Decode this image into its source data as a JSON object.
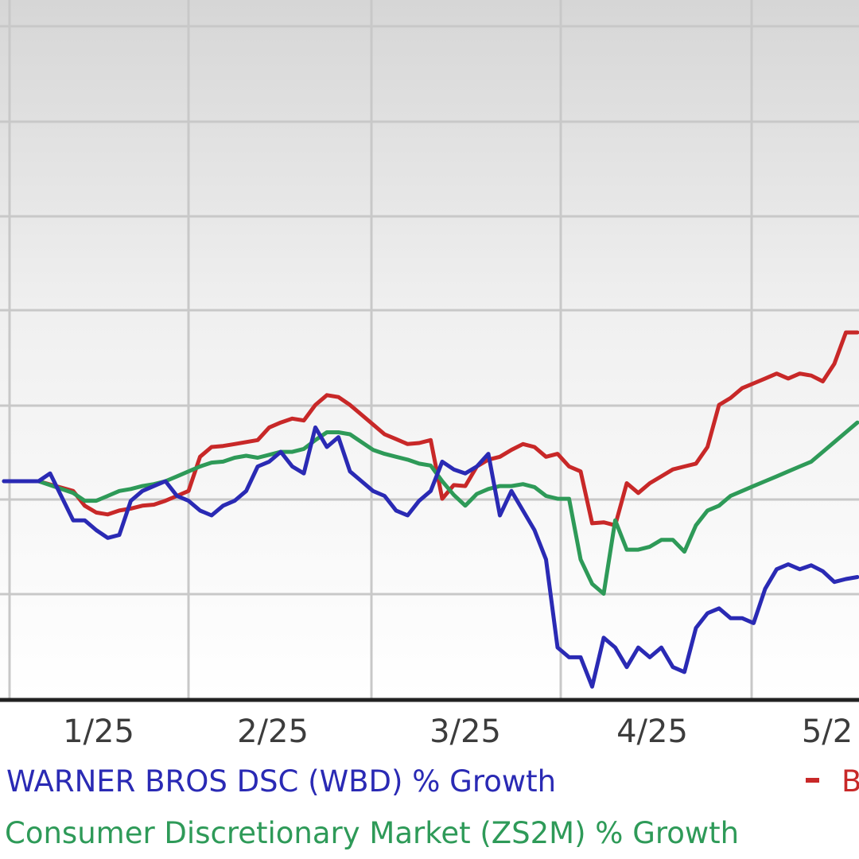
{
  "chart_data": {
    "type": "line",
    "title": "",
    "xlabel": "",
    "ylabel": "",
    "grid": true,
    "x_tick_labels": [
      "1/25",
      "2/25",
      "3/25",
      "4/25",
      "5/2"
    ],
    "legend": {
      "placement": "bottom",
      "entries": [
        {
          "series": "wbd",
          "text": "WARNER BROS DSC (WBD) % Growth",
          "marker": ""
        },
        {
          "series": "zs2m",
          "text": "Consumer Discretionary Market (ZS2M) % Growth",
          "marker": ""
        },
        {
          "series": "third",
          "text": "B",
          "marker": "-"
        }
      ]
    },
    "series": [
      {
        "key": "third",
        "color": "#c82828",
        "values": [
          [
            0,
            0
          ],
          [
            3,
            0
          ],
          [
            6,
            -1
          ],
          [
            7,
            -2.5
          ],
          [
            8,
            -3.2
          ],
          [
            9,
            -3.4
          ],
          [
            10,
            -3
          ],
          [
            11,
            -2.8
          ],
          [
            12,
            -2.5
          ],
          [
            13,
            -2.4
          ],
          [
            14,
            -2
          ],
          [
            15,
            -1.5
          ],
          [
            16,
            -1
          ],
          [
            17,
            2.5
          ],
          [
            18,
            3.5
          ],
          [
            19,
            3.6
          ],
          [
            20,
            3.8
          ],
          [
            21,
            4
          ],
          [
            22,
            4.2
          ],
          [
            23,
            5.5
          ],
          [
            24,
            6
          ],
          [
            25,
            6.4
          ],
          [
            26,
            6.2
          ],
          [
            27,
            7.8
          ],
          [
            28,
            8.8
          ],
          [
            29,
            8.6
          ],
          [
            30,
            7.8
          ],
          [
            31,
            6.8
          ],
          [
            32,
            5.8
          ],
          [
            33,
            4.8
          ],
          [
            34,
            4.3
          ],
          [
            35,
            3.8
          ],
          [
            36,
            3.9
          ],
          [
            37,
            4.2
          ],
          [
            38,
            -1.8
          ],
          [
            39,
            -0.4
          ],
          [
            40,
            -0.5
          ],
          [
            41,
            1.5
          ],
          [
            42,
            2.2
          ],
          [
            43,
            2.5
          ],
          [
            44,
            3.2
          ],
          [
            45,
            3.8
          ],
          [
            46,
            3.5
          ],
          [
            47,
            2.5
          ],
          [
            48,
            2.8
          ],
          [
            49,
            1.5
          ],
          [
            50,
            1.0
          ],
          [
            51,
            -4.3
          ],
          [
            52,
            -4.2
          ],
          [
            53,
            -4.5
          ],
          [
            54,
            -0.2
          ],
          [
            55,
            -1.2
          ],
          [
            56,
            -0.2
          ],
          [
            57,
            0.5
          ],
          [
            58,
            1.2
          ],
          [
            59,
            1.5
          ],
          [
            60,
            1.8
          ],
          [
            61,
            3.5
          ],
          [
            62,
            7.8
          ],
          [
            63,
            8.5
          ],
          [
            64,
            9.5
          ],
          [
            65,
            10
          ],
          [
            66,
            10.5
          ],
          [
            67,
            11
          ],
          [
            68,
            10.5
          ],
          [
            69,
            11
          ],
          [
            70,
            10.8
          ],
          [
            71,
            10.2
          ],
          [
            72,
            12
          ],
          [
            73,
            15.2
          ],
          [
            74,
            15.2
          ]
        ]
      },
      {
        "key": "zs2m",
        "color": "#2e9a58",
        "values": [
          [
            0,
            0
          ],
          [
            3,
            0
          ],
          [
            6,
            -1.2
          ],
          [
            7,
            -2
          ],
          [
            8,
            -2
          ],
          [
            9,
            -1.5
          ],
          [
            10,
            -1
          ],
          [
            11,
            -0.8
          ],
          [
            12,
            -0.5
          ],
          [
            13,
            -0.3
          ],
          [
            14,
            0
          ],
          [
            15,
            0.5
          ],
          [
            16,
            1
          ],
          [
            17,
            1.5
          ],
          [
            18,
            1.9
          ],
          [
            19,
            2
          ],
          [
            20,
            2.4
          ],
          [
            21,
            2.6
          ],
          [
            22,
            2.4
          ],
          [
            23,
            2.7
          ],
          [
            24,
            3
          ],
          [
            25,
            3
          ],
          [
            26,
            3.3
          ],
          [
            27,
            4.2
          ],
          [
            28,
            5
          ],
          [
            29,
            5
          ],
          [
            30,
            4.8
          ],
          [
            31,
            4
          ],
          [
            32,
            3.2
          ],
          [
            33,
            2.8
          ],
          [
            34,
            2.5
          ],
          [
            35,
            2.2
          ],
          [
            36,
            1.8
          ],
          [
            37,
            1.6
          ],
          [
            38,
            0
          ],
          [
            39,
            -1.4
          ],
          [
            40,
            -2.5
          ],
          [
            41,
            -1.3
          ],
          [
            42,
            -0.8
          ],
          [
            43,
            -0.5
          ],
          [
            44,
            -0.5
          ],
          [
            45,
            -0.3
          ],
          [
            46,
            -0.6
          ],
          [
            47,
            -1.5
          ],
          [
            48,
            -1.8
          ],
          [
            49,
            -1.8
          ],
          [
            50,
            -8
          ],
          [
            51,
            -10.5
          ],
          [
            52,
            -11.5
          ],
          [
            53,
            -4
          ],
          [
            54,
            -7
          ],
          [
            55,
            -7
          ],
          [
            56,
            -6.7
          ],
          [
            57,
            -6
          ],
          [
            58,
            -6
          ],
          [
            59,
            -7.2
          ],
          [
            60,
            -4.5
          ],
          [
            61,
            -3
          ],
          [
            62,
            -2.5
          ],
          [
            63,
            -1.5
          ],
          [
            64,
            -1
          ],
          [
            65,
            -0.5
          ],
          [
            66,
            0
          ],
          [
            67,
            0.5
          ],
          [
            68,
            1
          ],
          [
            69,
            1.5
          ],
          [
            70,
            2
          ],
          [
            71,
            3
          ],
          [
            72,
            4
          ],
          [
            73,
            5
          ],
          [
            74,
            6
          ]
        ]
      },
      {
        "key": "wbd",
        "color": "#2a2ab4",
        "values": [
          [
            0,
            0
          ],
          [
            3,
            0
          ],
          [
            4,
            0.8
          ],
          [
            6,
            -4
          ],
          [
            7,
            -4
          ],
          [
            8,
            -5
          ],
          [
            9,
            -5.8
          ],
          [
            10,
            -5.5
          ],
          [
            11,
            -2
          ],
          [
            12,
            -1
          ],
          [
            13,
            -0.5
          ],
          [
            14,
            0
          ],
          [
            15,
            -1.5
          ],
          [
            16,
            -2
          ],
          [
            17,
            -3
          ],
          [
            18,
            -3.5
          ],
          [
            19,
            -2.5
          ],
          [
            20,
            -2
          ],
          [
            21,
            -1
          ],
          [
            22,
            1.5
          ],
          [
            23,
            2
          ],
          [
            24,
            3
          ],
          [
            25,
            1.5
          ],
          [
            26,
            0.8
          ],
          [
            27,
            5.5
          ],
          [
            28,
            3.5
          ],
          [
            29,
            4.5
          ],
          [
            30,
            1
          ],
          [
            31,
            0
          ],
          [
            32,
            -1
          ],
          [
            33,
            -1.5
          ],
          [
            34,
            -3
          ],
          [
            35,
            -3.5
          ],
          [
            36,
            -2
          ],
          [
            37,
            -1
          ],
          [
            38,
            2
          ],
          [
            39,
            1.2
          ],
          [
            40,
            0.8
          ],
          [
            41,
            1.5
          ],
          [
            42,
            2.8
          ],
          [
            43,
            -3.5
          ],
          [
            44,
            -1
          ],
          [
            45,
            -3
          ],
          [
            46,
            -5
          ],
          [
            47,
            -8
          ],
          [
            48,
            -17
          ],
          [
            49,
            -18
          ],
          [
            50,
            -18
          ],
          [
            51,
            -21
          ],
          [
            52,
            -16
          ],
          [
            53,
            -17
          ],
          [
            54,
            -19
          ],
          [
            55,
            -17
          ],
          [
            56,
            -18
          ],
          [
            57,
            -17
          ],
          [
            58,
            -19
          ],
          [
            59,
            -19.5
          ],
          [
            60,
            -15
          ],
          [
            61,
            -13.5
          ],
          [
            62,
            -13
          ],
          [
            63,
            -14
          ],
          [
            64,
            -14
          ],
          [
            65,
            -14.5
          ],
          [
            66,
            -11
          ],
          [
            67,
            -9
          ],
          [
            68,
            -8.5
          ],
          [
            69,
            -9
          ],
          [
            70,
            -8.6
          ],
          [
            71,
            -9.2
          ],
          [
            72,
            -10.3
          ],
          [
            73,
            -10
          ],
          [
            74,
            -9.8
          ]
        ]
      }
    ]
  }
}
